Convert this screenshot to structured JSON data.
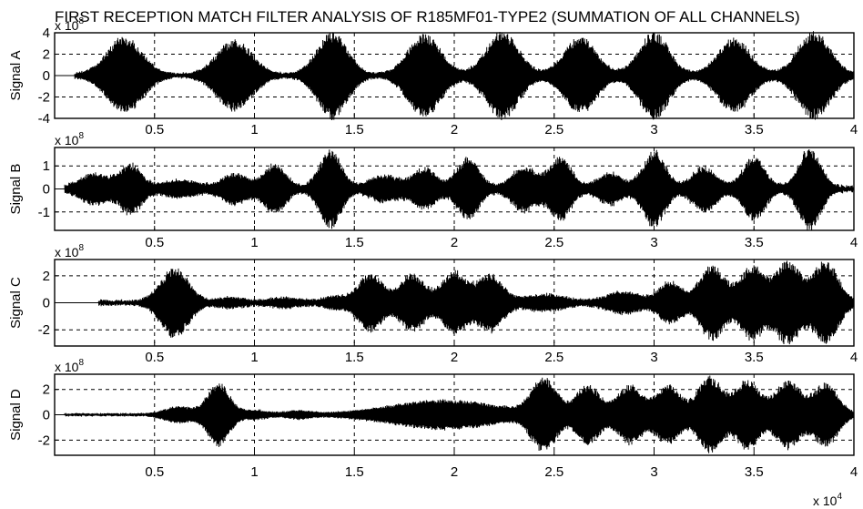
{
  "title": "FIRST RECEPTION MATCH FILTER ANALYSIS OF R185MF01-TYPE2 (SUMMATION OF ALL CHANNELS)",
  "x_exponent_label": "x 10",
  "x_exponent_power": "4",
  "chart_data": [
    {
      "type": "line",
      "ylabel": "Signal A",
      "y_exponent_label": "x 10",
      "y_exponent_power": "8",
      "xlim": [
        0,
        40000
      ],
      "ylim": [
        -4,
        4
      ],
      "xticks": [
        5000,
        10000,
        15000,
        20000,
        25000,
        30000,
        35000,
        40000
      ],
      "xtick_labels": [
        "0.5",
        "1",
        "1.5",
        "2",
        "2.5",
        "3",
        "3.5",
        "4"
      ],
      "yticks": [
        4,
        2,
        0,
        -2,
        -4
      ],
      "ytick_labels": [
        "4",
        "2",
        "0",
        "-2",
        "-4"
      ],
      "grid": true,
      "start": 1000,
      "noise": 0.18,
      "bursts": [
        {
          "center": 3500,
          "amplitude": 3.5,
          "width": 1300
        },
        {
          "center": 9000,
          "amplitude": 3.2,
          "width": 1300
        },
        {
          "center": 13900,
          "amplitude": 4.0,
          "width": 1100
        },
        {
          "center": 18500,
          "amplitude": 3.8,
          "width": 1200
        },
        {
          "center": 22400,
          "amplitude": 4.0,
          "width": 1200
        },
        {
          "center": 26300,
          "amplitude": 3.5,
          "width": 1200
        },
        {
          "center": 30000,
          "amplitude": 4.0,
          "width": 1100
        },
        {
          "center": 34000,
          "amplitude": 3.4,
          "width": 1200
        },
        {
          "center": 38000,
          "amplitude": 4.0,
          "width": 1200
        }
      ]
    },
    {
      "type": "line",
      "ylabel": "Signal B",
      "y_exponent_label": "x 10",
      "y_exponent_power": "8",
      "xlim": [
        0,
        40000
      ],
      "ylim": [
        -1.8,
        1.8
      ],
      "xticks": [
        5000,
        10000,
        15000,
        20000,
        25000,
        30000,
        35000,
        40000
      ],
      "xtick_labels": [
        "0.5",
        "1",
        "1.5",
        "2",
        "2.5",
        "3",
        "3.5",
        "4"
      ],
      "yticks": [
        1,
        0,
        -1
      ],
      "ytick_labels": [
        "1",
        "0",
        "-1"
      ],
      "grid": true,
      "start": 500,
      "noise": 0.12,
      "bursts": [
        {
          "center": 2000,
          "amplitude": 0.6,
          "width": 1000
        },
        {
          "center": 3800,
          "amplitude": 1.0,
          "width": 800
        },
        {
          "center": 6300,
          "amplitude": 0.3,
          "width": 1200
        },
        {
          "center": 9000,
          "amplitude": 0.6,
          "width": 900
        },
        {
          "center": 11000,
          "amplitude": 1.0,
          "width": 800
        },
        {
          "center": 13800,
          "amplitude": 1.6,
          "width": 800
        },
        {
          "center": 16500,
          "amplitude": 0.5,
          "width": 1000
        },
        {
          "center": 18500,
          "amplitude": 0.8,
          "width": 900
        },
        {
          "center": 20700,
          "amplitude": 1.3,
          "width": 800
        },
        {
          "center": 23500,
          "amplitude": 0.9,
          "width": 900
        },
        {
          "center": 25300,
          "amplitude": 1.3,
          "width": 800
        },
        {
          "center": 27800,
          "amplitude": 0.6,
          "width": 900
        },
        {
          "center": 30000,
          "amplitude": 1.6,
          "width": 800
        },
        {
          "center": 32500,
          "amplitude": 0.9,
          "width": 900
        },
        {
          "center": 35000,
          "amplitude": 1.3,
          "width": 800
        },
        {
          "center": 37800,
          "amplitude": 1.7,
          "width": 800
        }
      ]
    },
    {
      "type": "line",
      "ylabel": "Signal C",
      "y_exponent_label": "x 10",
      "y_exponent_power": "8",
      "xlim": [
        0,
        40000
      ],
      "ylim": [
        -3.2,
        3.2
      ],
      "xticks": [
        5000,
        10000,
        15000,
        20000,
        25000,
        30000,
        35000,
        40000
      ],
      "xtick_labels": [
        "0.5",
        "1",
        "1.5",
        "2",
        "2.5",
        "3",
        "3.5",
        "4"
      ],
      "yticks": [
        2,
        0,
        -2
      ],
      "ytick_labels": [
        "2",
        "0",
        "-2"
      ],
      "grid": true,
      "start": 2200,
      "noise": 0.18,
      "bursts": [
        {
          "center": 6000,
          "amplitude": 2.5,
          "width": 1000
        },
        {
          "center": 8800,
          "amplitude": 0.25,
          "width": 900
        },
        {
          "center": 11500,
          "amplitude": 0.25,
          "width": 1000
        },
        {
          "center": 14000,
          "amplitude": 0.35,
          "width": 800
        },
        {
          "center": 15800,
          "amplitude": 2.0,
          "width": 900
        },
        {
          "center": 17900,
          "amplitude": 2.0,
          "width": 900
        },
        {
          "center": 20000,
          "amplitude": 2.2,
          "width": 900
        },
        {
          "center": 21800,
          "amplitude": 2.0,
          "width": 900
        },
        {
          "center": 24500,
          "amplitude": 0.5,
          "width": 1400
        },
        {
          "center": 28500,
          "amplitude": 0.7,
          "width": 1200
        },
        {
          "center": 30800,
          "amplitude": 1.5,
          "width": 800
        },
        {
          "center": 32900,
          "amplitude": 2.7,
          "width": 900
        },
        {
          "center": 34900,
          "amplitude": 2.6,
          "width": 900
        },
        {
          "center": 36700,
          "amplitude": 3.0,
          "width": 900
        },
        {
          "center": 38600,
          "amplitude": 3.0,
          "width": 900
        }
      ]
    },
    {
      "type": "line",
      "ylabel": "Signal D",
      "y_exponent_label": "x 10",
      "y_exponent_power": "8",
      "xlim": [
        0,
        40000
      ],
      "ylim": [
        -3.2,
        3.2
      ],
      "xticks": [
        5000,
        10000,
        15000,
        20000,
        25000,
        30000,
        35000,
        40000
      ],
      "xtick_labels": [
        "0.5",
        "1",
        "1.5",
        "2",
        "2.5",
        "3",
        "3.5",
        "4"
      ],
      "yticks": [
        2,
        0,
        -2
      ],
      "ytick_labels": [
        "2",
        "0",
        "-2"
      ],
      "grid": true,
      "start": 500,
      "noise": 0.1,
      "bursts": [
        {
          "center": 6200,
          "amplitude": 0.6,
          "width": 1000
        },
        {
          "center": 8200,
          "amplitude": 2.5,
          "width": 800
        },
        {
          "center": 10000,
          "amplitude": 0.3,
          "width": 900
        },
        {
          "center": 12200,
          "amplitude": 0.25,
          "width": 900
        },
        {
          "center": 19500,
          "amplitude": 1.1,
          "width": 4000
        },
        {
          "center": 24500,
          "amplitude": 2.8,
          "width": 900
        },
        {
          "center": 26700,
          "amplitude": 2.3,
          "width": 900
        },
        {
          "center": 28800,
          "amplitude": 2.3,
          "width": 900
        },
        {
          "center": 30700,
          "amplitude": 2.3,
          "width": 900
        },
        {
          "center": 32800,
          "amplitude": 3.0,
          "width": 900
        },
        {
          "center": 34700,
          "amplitude": 2.7,
          "width": 900
        },
        {
          "center": 36700,
          "amplitude": 2.7,
          "width": 900
        },
        {
          "center": 38600,
          "amplitude": 2.5,
          "width": 900
        }
      ]
    }
  ]
}
